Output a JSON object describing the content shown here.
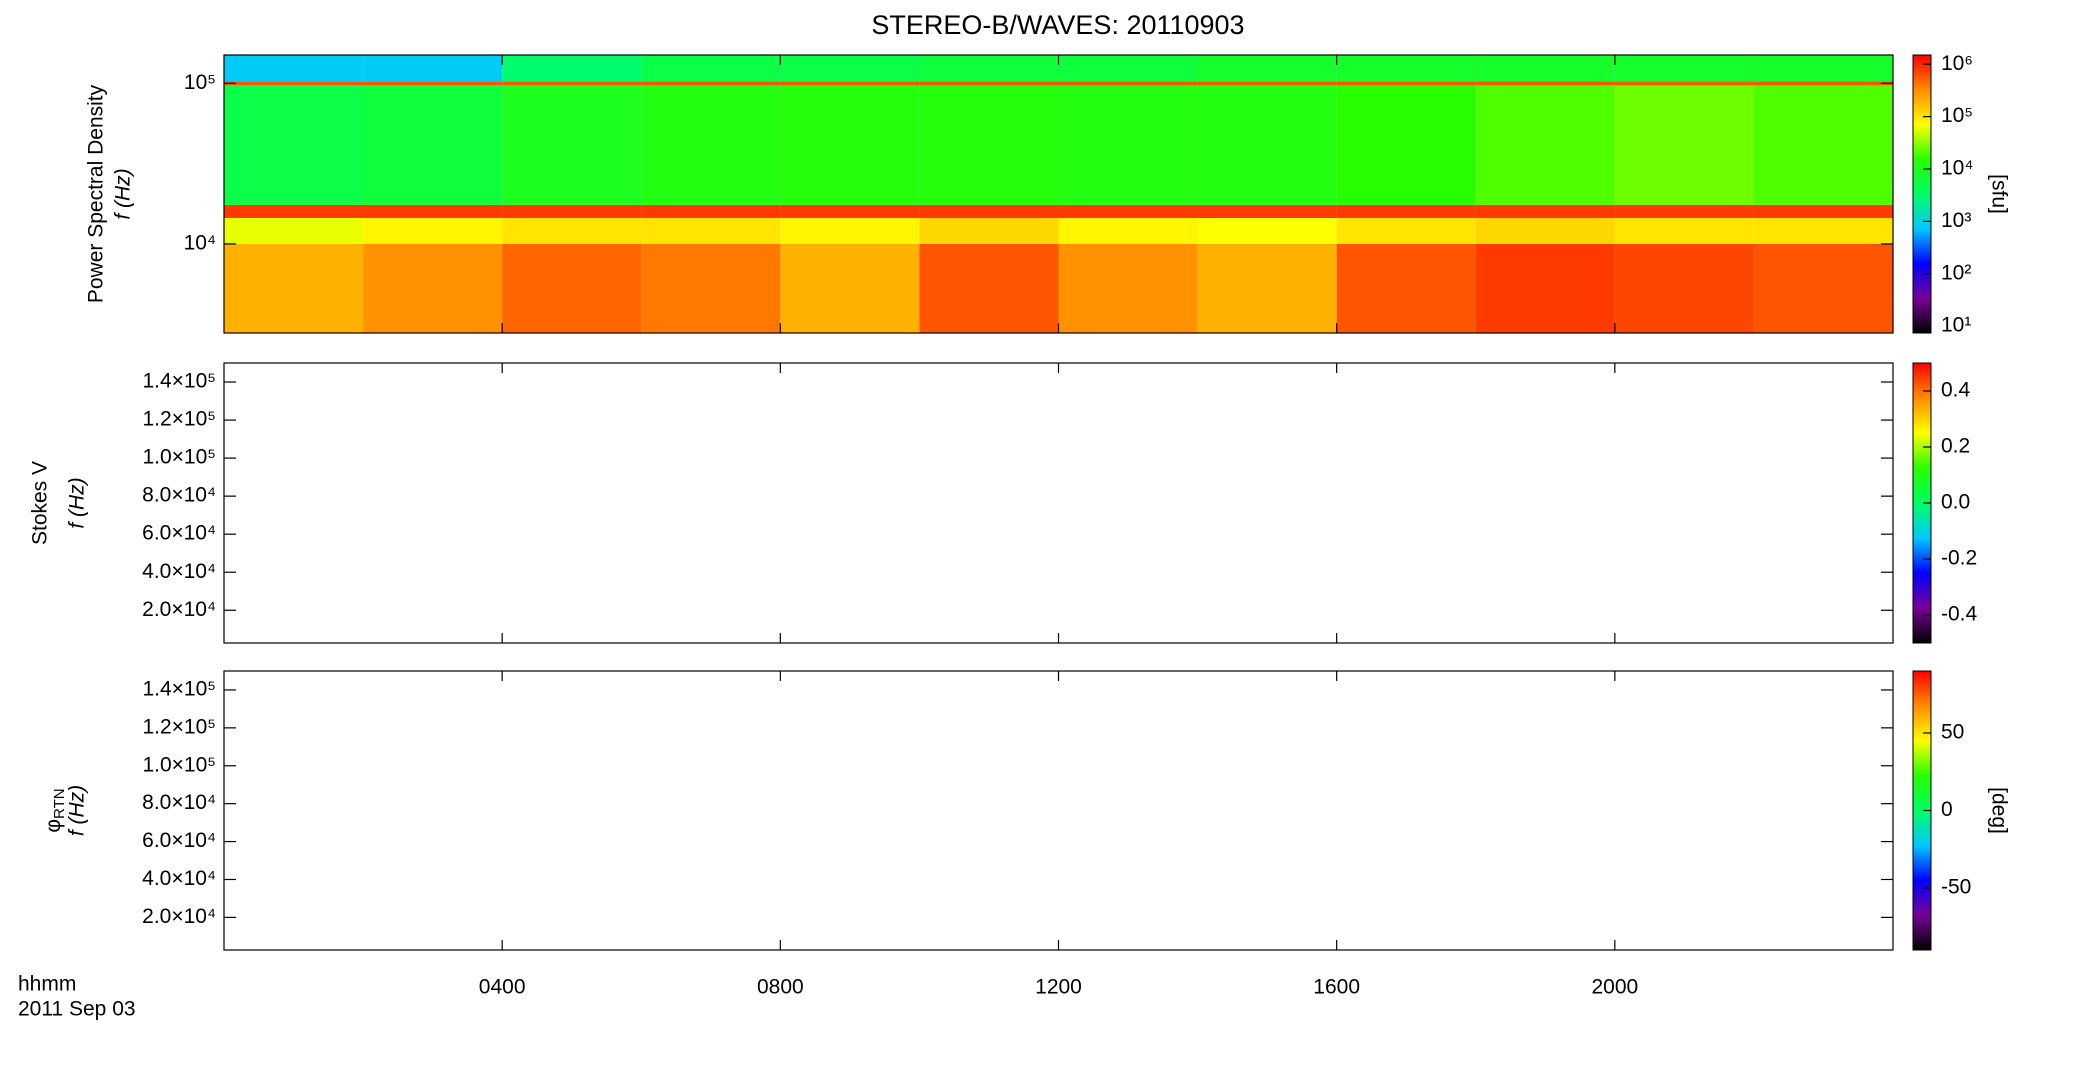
{
  "chart_data": [
    {
      "type": "heatmap",
      "title": "STEREO-B/WAVES: 20110903",
      "y_label": "Power Spectral Density",
      "y_label2": "f (Hz)",
      "xlim": [
        0,
        24
      ],
      "xticks": [
        {
          "value": 4,
          "label": "0400"
        },
        {
          "value": 8,
          "label": "0800"
        },
        {
          "value": 12,
          "label": "1200"
        },
        {
          "value": 16,
          "label": "1600"
        },
        {
          "value": 20,
          "label": "2000"
        }
      ],
      "ylog": true,
      "ylim": [
        2790,
        150000
      ],
      "yticks": [
        {
          "value": 10000,
          "label": "10⁴"
        },
        {
          "value": 100000,
          "label": "10⁵"
        }
      ],
      "x_edges": [
        0,
        2,
        4,
        6,
        8,
        10,
        12,
        14,
        16,
        18,
        20,
        22,
        24
      ],
      "y_edges": [
        2790,
        10000,
        14500,
        17500,
        97000,
        103000,
        150000
      ],
      "z": [
        [
          200000,
          300000,
          500000,
          400000,
          200000,
          600000,
          300000,
          200000,
          600000,
          800000,
          700000,
          600000
        ],
        [
          60000,
          80000,
          100000,
          100000,
          80000,
          120000,
          80000,
          70000,
          100000,
          120000,
          100000,
          100000
        ],
        [
          800000,
          800000,
          800000,
          800000,
          800000,
          800000,
          800000,
          800000,
          800000,
          800000,
          800000,
          800000
        ],
        [
          5000,
          6000,
          10000,
          12000,
          13000,
          13000,
          12000,
          12000,
          15000,
          20000,
          25000,
          20000
        ],
        [
          600000,
          600000,
          600000,
          600000,
          600000,
          600000,
          600000,
          600000,
          600000,
          600000,
          600000,
          600000
        ],
        [
          800,
          800,
          3000,
          5000,
          5000,
          6000,
          6000,
          8000,
          8000,
          8000,
          8000,
          8000
        ]
      ],
      "clog": true,
      "clim": [
        7.4,
        1500000
      ],
      "cticks": [
        {
          "value": 10,
          "label": "10¹"
        },
        {
          "value": 100,
          "label": "10²"
        },
        {
          "value": 1000,
          "label": "10³"
        },
        {
          "value": 10000,
          "label": "10⁴"
        },
        {
          "value": 100000,
          "label": "10⁵"
        },
        {
          "value": 1000000,
          "label": "10⁶"
        }
      ],
      "clabel": "[sfu]",
      "colormap": [
        "#000000",
        "#780096",
        "#0000ff",
        "#00c8ff",
        "#00ff64",
        "#28ff00",
        "#ffff00",
        "#ff8c00",
        "#ff0000"
      ]
    },
    {
      "type": "heatmap",
      "y_label": "Stokes V",
      "y_label2": "f (Hz)",
      "xlim": [
        0,
        24
      ],
      "xticks": [
        {
          "value": 4,
          "label": "0400"
        },
        {
          "value": 8,
          "label": "0800"
        },
        {
          "value": 12,
          "label": "1200"
        },
        {
          "value": 16,
          "label": "1600"
        },
        {
          "value": 20,
          "label": "2000"
        }
      ],
      "ylim": [
        2790,
        150000
      ],
      "yticks": [
        {
          "value": 20000,
          "label": "2.0×10⁴"
        },
        {
          "value": 40000,
          "label": "4.0×10⁴"
        },
        {
          "value": 60000,
          "label": "6.0×10⁴"
        },
        {
          "value": 80000,
          "label": "8.0×10⁴"
        },
        {
          "value": 100000,
          "label": "1.0×10⁵"
        },
        {
          "value": 120000,
          "label": "1.2×10⁵"
        },
        {
          "value": 140000,
          "label": "1.4×10⁵"
        }
      ],
      "clim": [
        -0.5,
        0.5
      ],
      "cticks": [
        -0.4,
        -0.2,
        {
          "value": 0,
          "label": "0.0"
        },
        0.2,
        0.4
      ],
      "colormap": [
        "#000000",
        "#780096",
        "#0000ff",
        "#00c8ff",
        "#00ff64",
        "#28ff00",
        "#ffff00",
        "#ff8c00",
        "#ff0000"
      ]
    },
    {
      "type": "heatmap",
      "y_label_symbol": "φ",
      "y_label_subscript": "RTN",
      "y_label2": "f (Hz)",
      "x_label": "hhmm",
      "date_label": "2011 Sep 03",
      "xlim": [
        0,
        24
      ],
      "xticks": [
        {
          "value": 4,
          "label": "0400"
        },
        {
          "value": 8,
          "label": "0800"
        },
        {
          "value": 12,
          "label": "1200"
        },
        {
          "value": 16,
          "label": "1600"
        },
        {
          "value": 20,
          "label": "2000"
        }
      ],
      "show_xtick_labels": true,
      "ylim": [
        2790,
        150000
      ],
      "yticks": [
        {
          "value": 20000,
          "label": "2.0×10⁴"
        },
        {
          "value": 40000,
          "label": "4.0×10⁴"
        },
        {
          "value": 60000,
          "label": "6.0×10⁴"
        },
        {
          "value": 80000,
          "label": "8.0×10⁴"
        },
        {
          "value": 100000,
          "label": "1.0×10⁵"
        },
        {
          "value": 120000,
          "label": "1.2×10⁵"
        },
        {
          "value": 140000,
          "label": "1.4×10⁵"
        }
      ],
      "clim": [
        -90,
        90
      ],
      "cticks": [
        -50,
        0,
        50
      ],
      "clabel": "[deg]",
      "colormap": [
        "#000000",
        "#780096",
        "#0000ff",
        "#00c8ff",
        "#00ff64",
        "#28ff00",
        "#ffff00",
        "#ff8c00",
        "#ff0000"
      ]
    }
  ]
}
